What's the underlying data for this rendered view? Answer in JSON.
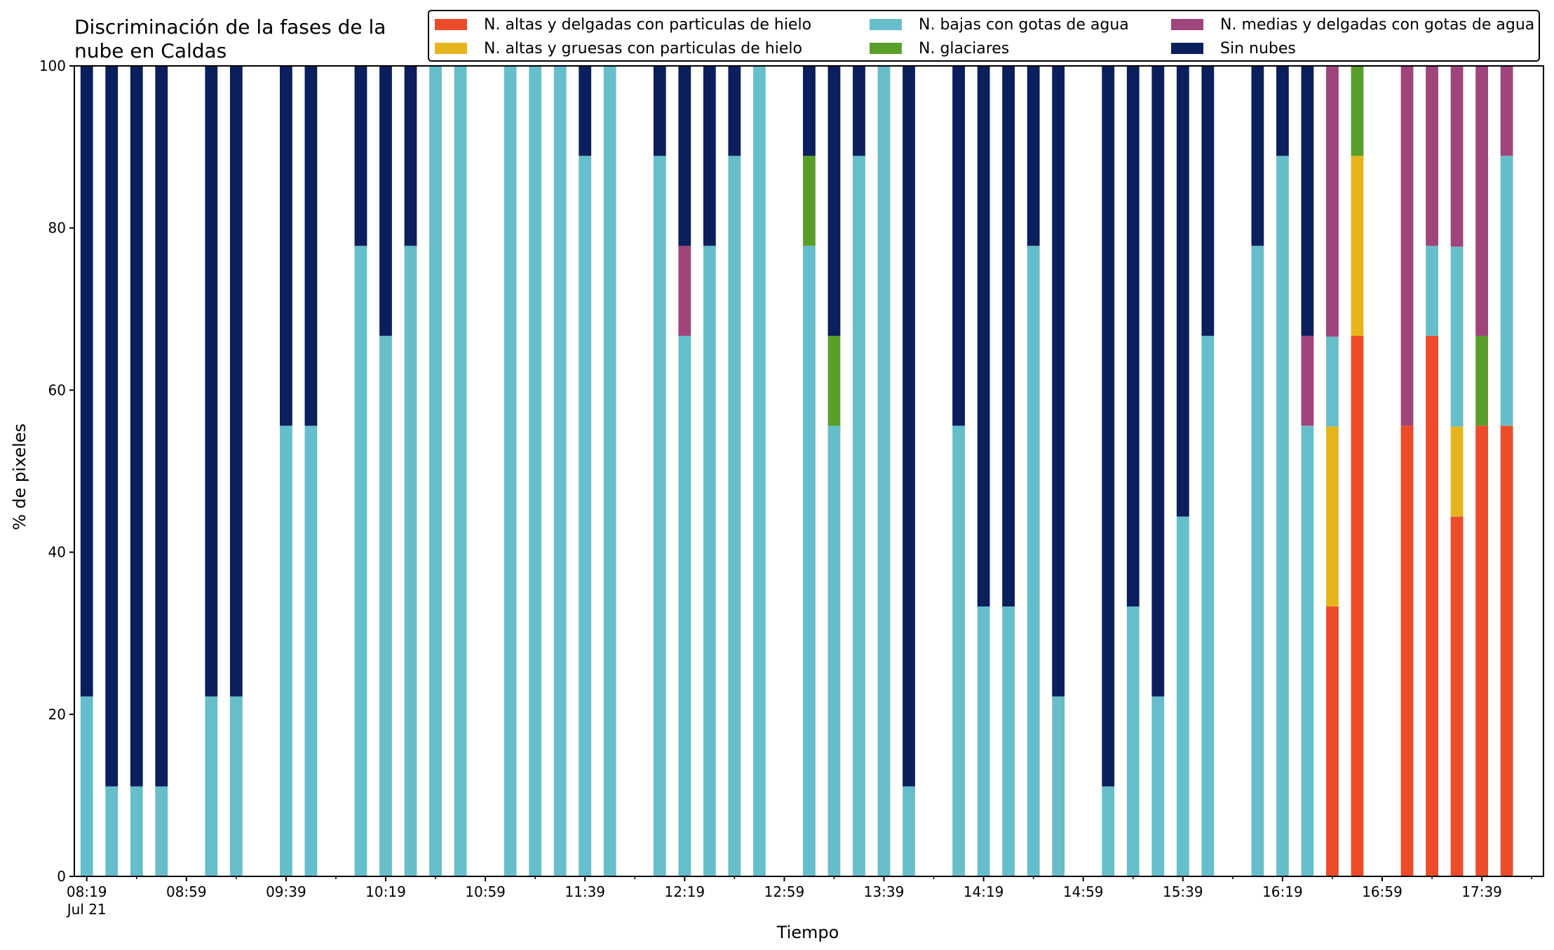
{
  "chart_data": {
    "type": "bar",
    "stacked": true,
    "title": "Discriminación de la fases de la nube en Caldas",
    "title_lines": [
      "Discriminación de la fases de la",
      "nube en Caldas"
    ],
    "xlabel": "Tiempo",
    "ylabel": "% de pixeles",
    "ylim": [
      0,
      100
    ],
    "yticks": [
      0,
      20,
      40,
      60,
      80,
      100
    ],
    "x_tick_labels": [
      "08:19",
      "08:59",
      "09:39",
      "10:19",
      "10:59",
      "11:39",
      "12:19",
      "12:59",
      "13:39",
      "14:19",
      "14:59",
      "15:39",
      "16:19",
      "16:59",
      "17:39"
    ],
    "x_tick_date": "Jul 21",
    "legend_position": "top-right",
    "grid": false,
    "series": [
      {
        "name": "N. altas y delgadas con particulas de hielo",
        "color": "#ee4b2b"
      },
      {
        "name": "N. altas y gruesas con particulas de hielo",
        "color": "#e6b51e"
      },
      {
        "name": "N. bajas con gotas de agua",
        "color": "#67becb"
      },
      {
        "name": "N. glaciares",
        "color": "#5a9e2a"
      },
      {
        "name": "N. medias y delgadas con gotas de agua",
        "color": "#a0447c"
      },
      {
        "name": "Sin nubes",
        "color": "#0a1f5c"
      }
    ],
    "legend_order": [
      0,
      2,
      4,
      1,
      3,
      5
    ],
    "bars": [
      {
        "slot": 0,
        "values": [
          0,
          0,
          22.2,
          0,
          0,
          77.8
        ]
      },
      {
        "slot": 1,
        "values": [
          0,
          0,
          11.1,
          0,
          0,
          88.9
        ]
      },
      {
        "slot": 2,
        "values": [
          0,
          0,
          11.1,
          0,
          0,
          88.9
        ]
      },
      {
        "slot": 3,
        "values": [
          0,
          0,
          11.1,
          0,
          0,
          88.9
        ]
      },
      {
        "slot": 5,
        "values": [
          0,
          0,
          22.2,
          0,
          0,
          77.8
        ]
      },
      {
        "slot": 6,
        "values": [
          0,
          0,
          22.2,
          0,
          0,
          77.8
        ]
      },
      {
        "slot": 8,
        "values": [
          0,
          0,
          55.6,
          0,
          0,
          44.4
        ]
      },
      {
        "slot": 9,
        "values": [
          0,
          0,
          55.6,
          0,
          0,
          44.4
        ]
      },
      {
        "slot": 11,
        "values": [
          0,
          0,
          77.8,
          0,
          0,
          22.2
        ]
      },
      {
        "slot": 12,
        "values": [
          0,
          0,
          66.7,
          0,
          0,
          33.3
        ]
      },
      {
        "slot": 13,
        "values": [
          0,
          0,
          77.8,
          0,
          0,
          22.2
        ]
      },
      {
        "slot": 14,
        "values": [
          0,
          0,
          100,
          0,
          0,
          0
        ]
      },
      {
        "slot": 15,
        "values": [
          0,
          0,
          100,
          0,
          0,
          0
        ]
      },
      {
        "slot": 17,
        "values": [
          0,
          0,
          100,
          0,
          0,
          0
        ]
      },
      {
        "slot": 18,
        "values": [
          0,
          0,
          100,
          0,
          0,
          0
        ]
      },
      {
        "slot": 19,
        "values": [
          0,
          0,
          100,
          0,
          0,
          0
        ]
      },
      {
        "slot": 20,
        "values": [
          0,
          0,
          88.9,
          0,
          0,
          11.1
        ]
      },
      {
        "slot": 21,
        "values": [
          0,
          0,
          100,
          0,
          0,
          0
        ]
      },
      {
        "slot": 23,
        "values": [
          0,
          0,
          88.9,
          0,
          0,
          11.1
        ]
      },
      {
        "slot": 24,
        "values": [
          0,
          0,
          66.7,
          0,
          11.1,
          22.2
        ]
      },
      {
        "slot": 25,
        "values": [
          0,
          0,
          77.8,
          0,
          0,
          22.2
        ]
      },
      {
        "slot": 26,
        "values": [
          0,
          0,
          88.9,
          0,
          0,
          11.1
        ]
      },
      {
        "slot": 27,
        "values": [
          0,
          0,
          100,
          0,
          0,
          0
        ]
      },
      {
        "slot": 29,
        "values": [
          0,
          0,
          77.8,
          11.1,
          0,
          11.1
        ]
      },
      {
        "slot": 30,
        "values": [
          0,
          0,
          55.6,
          11.1,
          0,
          33.3
        ]
      },
      {
        "slot": 31,
        "values": [
          0,
          0,
          88.9,
          0,
          0,
          11.1
        ]
      },
      {
        "slot": 32,
        "values": [
          0,
          0,
          100,
          0,
          0,
          0
        ]
      },
      {
        "slot": 33,
        "values": [
          0,
          0,
          11.1,
          0,
          0,
          88.9
        ]
      },
      {
        "slot": 35,
        "values": [
          0,
          0,
          55.6,
          0,
          0,
          44.4
        ]
      },
      {
        "slot": 36,
        "values": [
          0,
          0,
          33.3,
          0,
          0,
          66.7
        ]
      },
      {
        "slot": 37,
        "values": [
          0,
          0,
          33.3,
          0,
          0,
          66.7
        ]
      },
      {
        "slot": 38,
        "values": [
          0,
          0,
          77.8,
          0,
          0,
          22.2
        ]
      },
      {
        "slot": 39,
        "values": [
          0,
          0,
          22.2,
          0,
          0,
          77.8
        ]
      },
      {
        "slot": 41,
        "values": [
          0,
          0,
          11.1,
          0,
          0,
          88.9
        ]
      },
      {
        "slot": 42,
        "values": [
          0,
          0,
          33.3,
          0,
          0,
          66.7
        ]
      },
      {
        "slot": 43,
        "values": [
          0,
          0,
          22.2,
          0,
          0,
          77.8
        ]
      },
      {
        "slot": 44,
        "values": [
          0,
          0,
          44.4,
          0,
          0,
          55.6
        ]
      },
      {
        "slot": 45,
        "values": [
          0,
          0,
          66.7,
          0,
          0,
          33.3
        ]
      },
      {
        "slot": 47,
        "values": [
          0,
          0,
          77.8,
          0,
          0,
          22.2
        ]
      },
      {
        "slot": 48,
        "values": [
          0,
          0,
          88.9,
          0,
          0,
          11.1
        ]
      },
      {
        "slot": 49,
        "values": [
          0,
          0,
          55.6,
          0,
          11.1,
          33.3
        ]
      },
      {
        "slot": 50,
        "values": [
          33.3,
          22.2,
          11.1,
          0,
          33.3,
          0
        ]
      },
      {
        "slot": 51,
        "values": [
          66.7,
          22.2,
          0,
          11.1,
          0,
          0
        ]
      },
      {
        "slot": 53,
        "values": [
          55.6,
          0,
          0,
          0,
          44.4,
          0
        ]
      },
      {
        "slot": 54,
        "values": [
          66.7,
          0,
          11.1,
          0,
          22.2,
          0
        ]
      },
      {
        "slot": 55,
        "values": [
          44.4,
          11.1,
          22.2,
          0,
          22.2,
          0
        ]
      },
      {
        "slot": 56,
        "values": [
          55.6,
          0,
          0,
          11.1,
          33.3,
          0
        ]
      },
      {
        "slot": 57,
        "values": [
          55.6,
          0,
          33.3,
          0,
          11.1,
          0
        ]
      }
    ]
  }
}
